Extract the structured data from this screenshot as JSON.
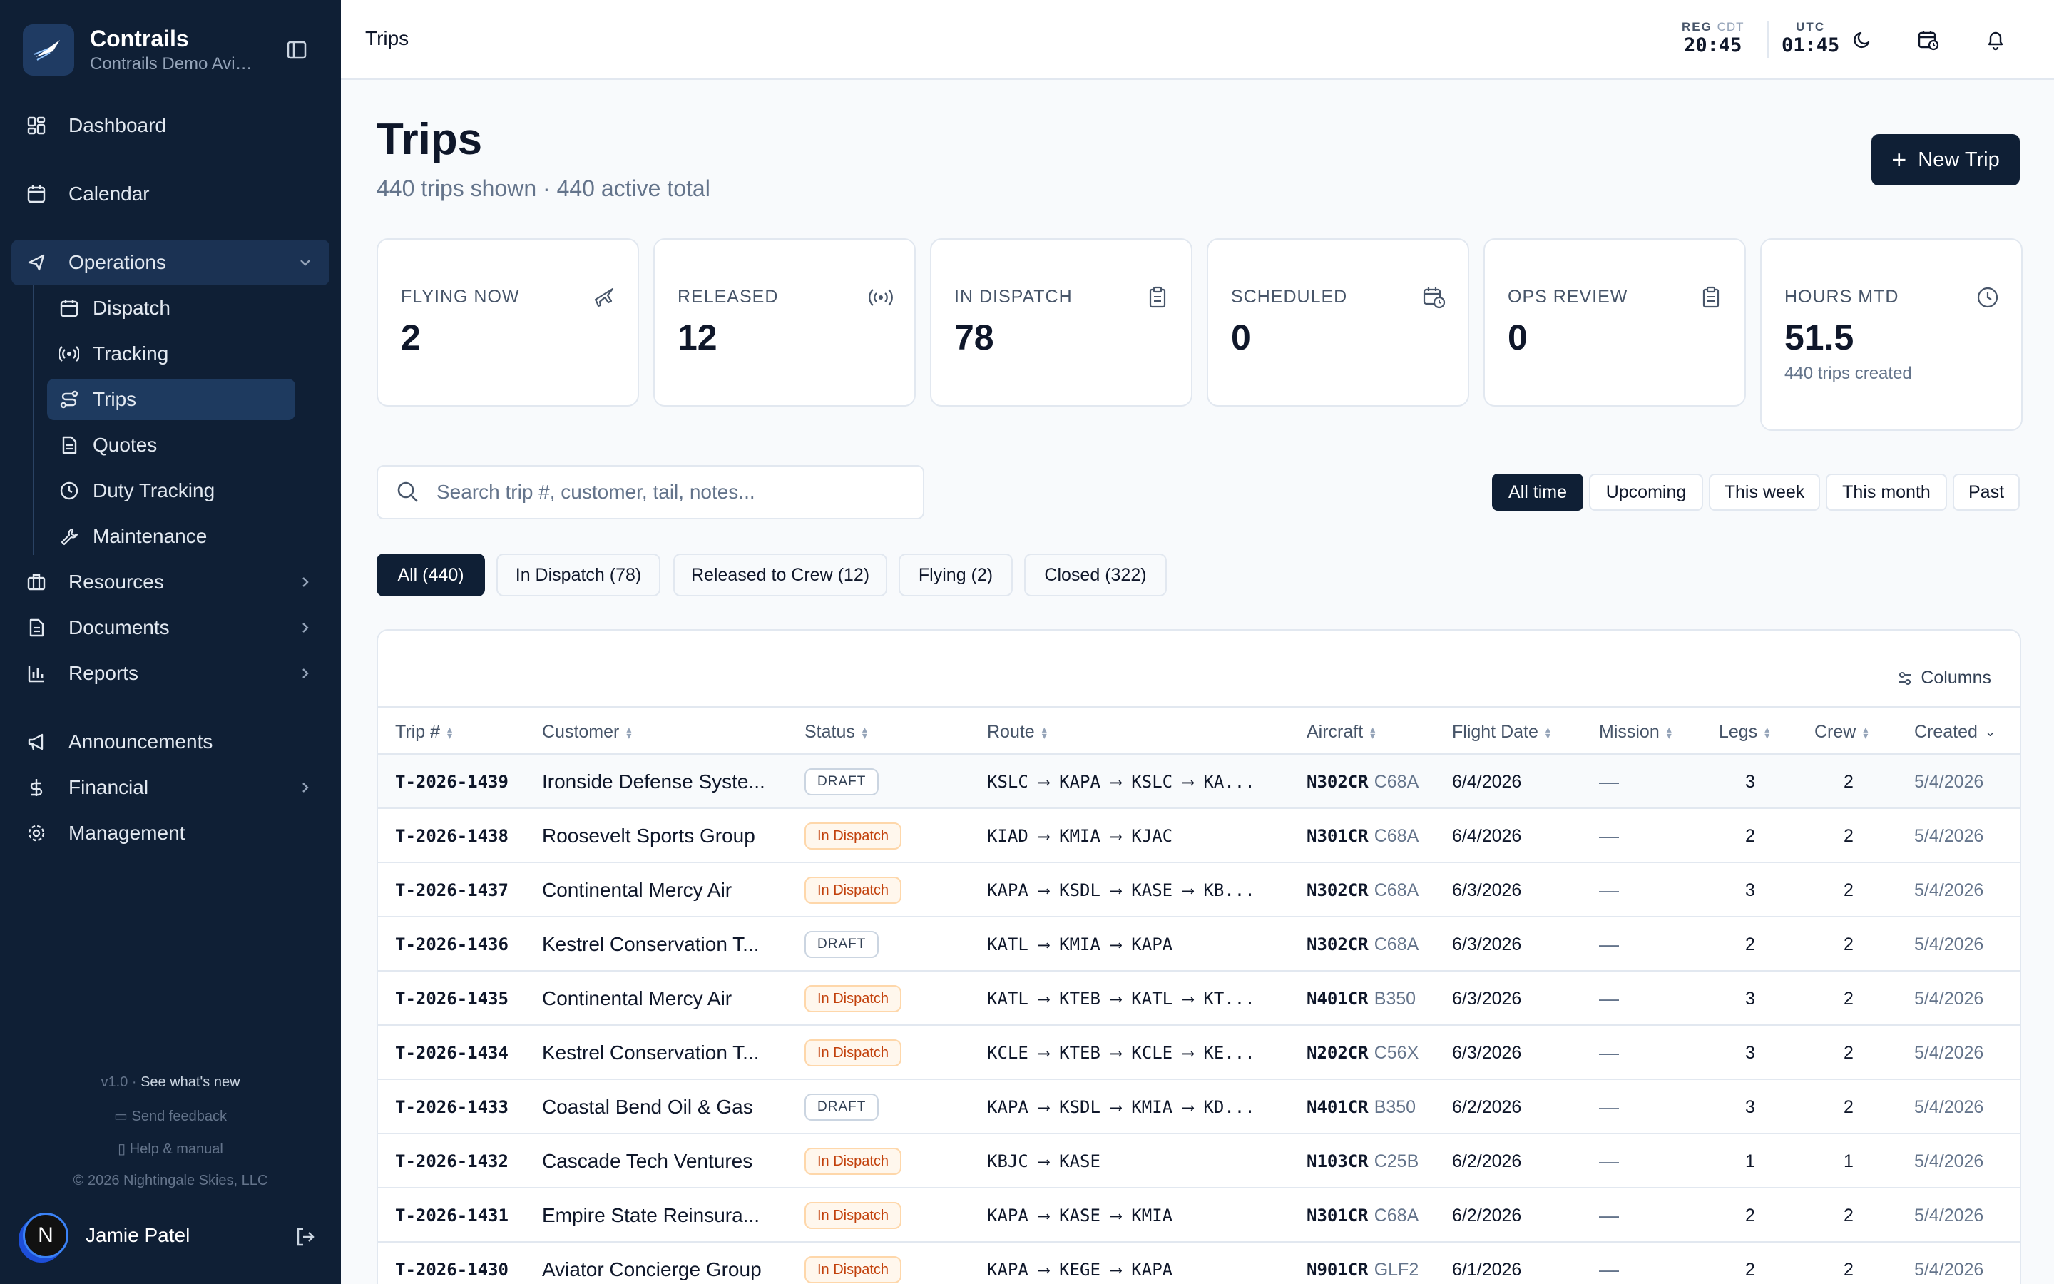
{
  "app": {
    "name": "Contrails",
    "org": "Contrails Demo Aviation"
  },
  "sidebar": {
    "items": [
      {
        "label": "Dashboard"
      },
      {
        "label": "Calendar"
      },
      {
        "label": "Operations"
      },
      {
        "label": "Resources"
      },
      {
        "label": "Documents"
      },
      {
        "label": "Reports"
      },
      {
        "label": "Announcements"
      },
      {
        "label": "Financial"
      },
      {
        "label": "Management"
      }
    ],
    "operations_sub": [
      {
        "label": "Dispatch"
      },
      {
        "label": "Tracking"
      },
      {
        "label": "Trips"
      },
      {
        "label": "Quotes"
      },
      {
        "label": "Duty Tracking"
      },
      {
        "label": "Maintenance"
      }
    ],
    "footer": {
      "version": "v1.0",
      "whats_new": "See what's new",
      "feedback": "Send feedback",
      "help": "Help & manual",
      "copyright": "© 2026 Nightingale Skies, LLC"
    },
    "user": {
      "initial": "N",
      "name": "Jamie Patel"
    }
  },
  "topbar": {
    "breadcrumb": "Trips",
    "reg_label": "REG",
    "reg_tz": "CDT",
    "reg_time": "20:45",
    "utc_label": "UTC",
    "utc_time": "01:45"
  },
  "page": {
    "title": "Trips",
    "subtitle": "440 trips shown · 440 active total",
    "new_button": "New Trip"
  },
  "stats": [
    {
      "label": "FLYING NOW",
      "value": "2",
      "icon": "plane-icon"
    },
    {
      "label": "RELEASED",
      "value": "12",
      "icon": "broadcast-icon"
    },
    {
      "label": "IN DISPATCH",
      "value": "78",
      "icon": "clipboard-icon"
    },
    {
      "label": "SCHEDULED",
      "value": "0",
      "icon": "calendar-clock-icon"
    },
    {
      "label": "OPS REVIEW",
      "value": "0",
      "icon": "clipboard-icon"
    },
    {
      "label": "HOURS MTD",
      "value": "51.5",
      "note": "440 trips created",
      "icon": "clock-icon"
    }
  ],
  "search": {
    "placeholder": "Search trip #, customer, tail, notes..."
  },
  "time_filters": [
    "All time",
    "Upcoming",
    "This week",
    "This month",
    "Past"
  ],
  "status_filters": [
    "All (440)",
    "In Dispatch (78)",
    "Released to Crew (12)",
    "Flying (2)",
    "Closed (322)"
  ],
  "table": {
    "columns_button": "Columns",
    "headers": [
      "Trip #",
      "Customer",
      "Status",
      "Route",
      "Aircraft",
      "Flight Date",
      "Mission",
      "Legs",
      "Crew",
      "Created"
    ],
    "rows": [
      {
        "trip": "T-2026-1439",
        "customer": "Ironside Defense Syste...",
        "status": "DRAFT",
        "route": "KSLC ⟶ KAPA ⟶ KSLC ⟶ KA...",
        "tail": "N302CR",
        "type": "C68A",
        "date": "6/4/2026",
        "mission": "—",
        "legs": "3",
        "crew": "2",
        "created": "5/4/2026"
      },
      {
        "trip": "T-2026-1438",
        "customer": "Roosevelt Sports Group",
        "status": "In Dispatch",
        "route": "KIAD ⟶ KMIA ⟶ KJAC",
        "tail": "N301CR",
        "type": "C68A",
        "date": "6/4/2026",
        "mission": "—",
        "legs": "2",
        "crew": "2",
        "created": "5/4/2026"
      },
      {
        "trip": "T-2026-1437",
        "customer": "Continental Mercy Air",
        "status": "In Dispatch",
        "route": "KAPA ⟶ KSDL ⟶ KASE ⟶ KB...",
        "tail": "N302CR",
        "type": "C68A",
        "date": "6/3/2026",
        "mission": "—",
        "legs": "3",
        "crew": "2",
        "created": "5/4/2026"
      },
      {
        "trip": "T-2026-1436",
        "customer": "Kestrel Conservation T...",
        "status": "DRAFT",
        "route": "KATL ⟶ KMIA ⟶ KAPA",
        "tail": "N302CR",
        "type": "C68A",
        "date": "6/3/2026",
        "mission": "—",
        "legs": "2",
        "crew": "2",
        "created": "5/4/2026"
      },
      {
        "trip": "T-2026-1435",
        "customer": "Continental Mercy Air",
        "status": "In Dispatch",
        "route": "KATL ⟶ KTEB ⟶ KATL ⟶ KT...",
        "tail": "N401CR",
        "type": "B350",
        "date": "6/3/2026",
        "mission": "—",
        "legs": "3",
        "crew": "2",
        "created": "5/4/2026"
      },
      {
        "trip": "T-2026-1434",
        "customer": "Kestrel Conservation T...",
        "status": "In Dispatch",
        "route": "KCLE ⟶ KTEB ⟶ KCLE ⟶ KE...",
        "tail": "N202CR",
        "type": "C56X",
        "date": "6/3/2026",
        "mission": "—",
        "legs": "3",
        "crew": "2",
        "created": "5/4/2026"
      },
      {
        "trip": "T-2026-1433",
        "customer": "Coastal Bend Oil & Gas",
        "status": "DRAFT",
        "route": "KAPA ⟶ KSDL ⟶ KMIA ⟶ KD...",
        "tail": "N401CR",
        "type": "B350",
        "date": "6/2/2026",
        "mission": "—",
        "legs": "3",
        "crew": "2",
        "created": "5/4/2026"
      },
      {
        "trip": "T-2026-1432",
        "customer": "Cascade Tech Ventures",
        "status": "In Dispatch",
        "route": "KBJC ⟶ KASE",
        "tail": "N103CR",
        "type": "C25B",
        "date": "6/2/2026",
        "mission": "—",
        "legs": "1",
        "crew": "1",
        "created": "5/4/2026"
      },
      {
        "trip": "T-2026-1431",
        "customer": "Empire State Reinsura...",
        "status": "In Dispatch",
        "route": "KAPA ⟶ KASE ⟶ KMIA",
        "tail": "N301CR",
        "type": "C68A",
        "date": "6/2/2026",
        "mission": "—",
        "legs": "2",
        "crew": "2",
        "created": "5/4/2026"
      },
      {
        "trip": "T-2026-1430",
        "customer": "Aviator Concierge Group",
        "status": "In Dispatch",
        "route": "KAPA ⟶ KEGE ⟶ KAPA",
        "tail": "N901CR",
        "type": "GLF2",
        "date": "6/1/2026",
        "mission": "—",
        "legs": "2",
        "crew": "2",
        "created": "5/4/2026"
      }
    ]
  },
  "colors": {
    "sidebar_bg": "#0f1f35",
    "accent": "#0f1f35",
    "dispatch_badge": "#c2410c"
  }
}
